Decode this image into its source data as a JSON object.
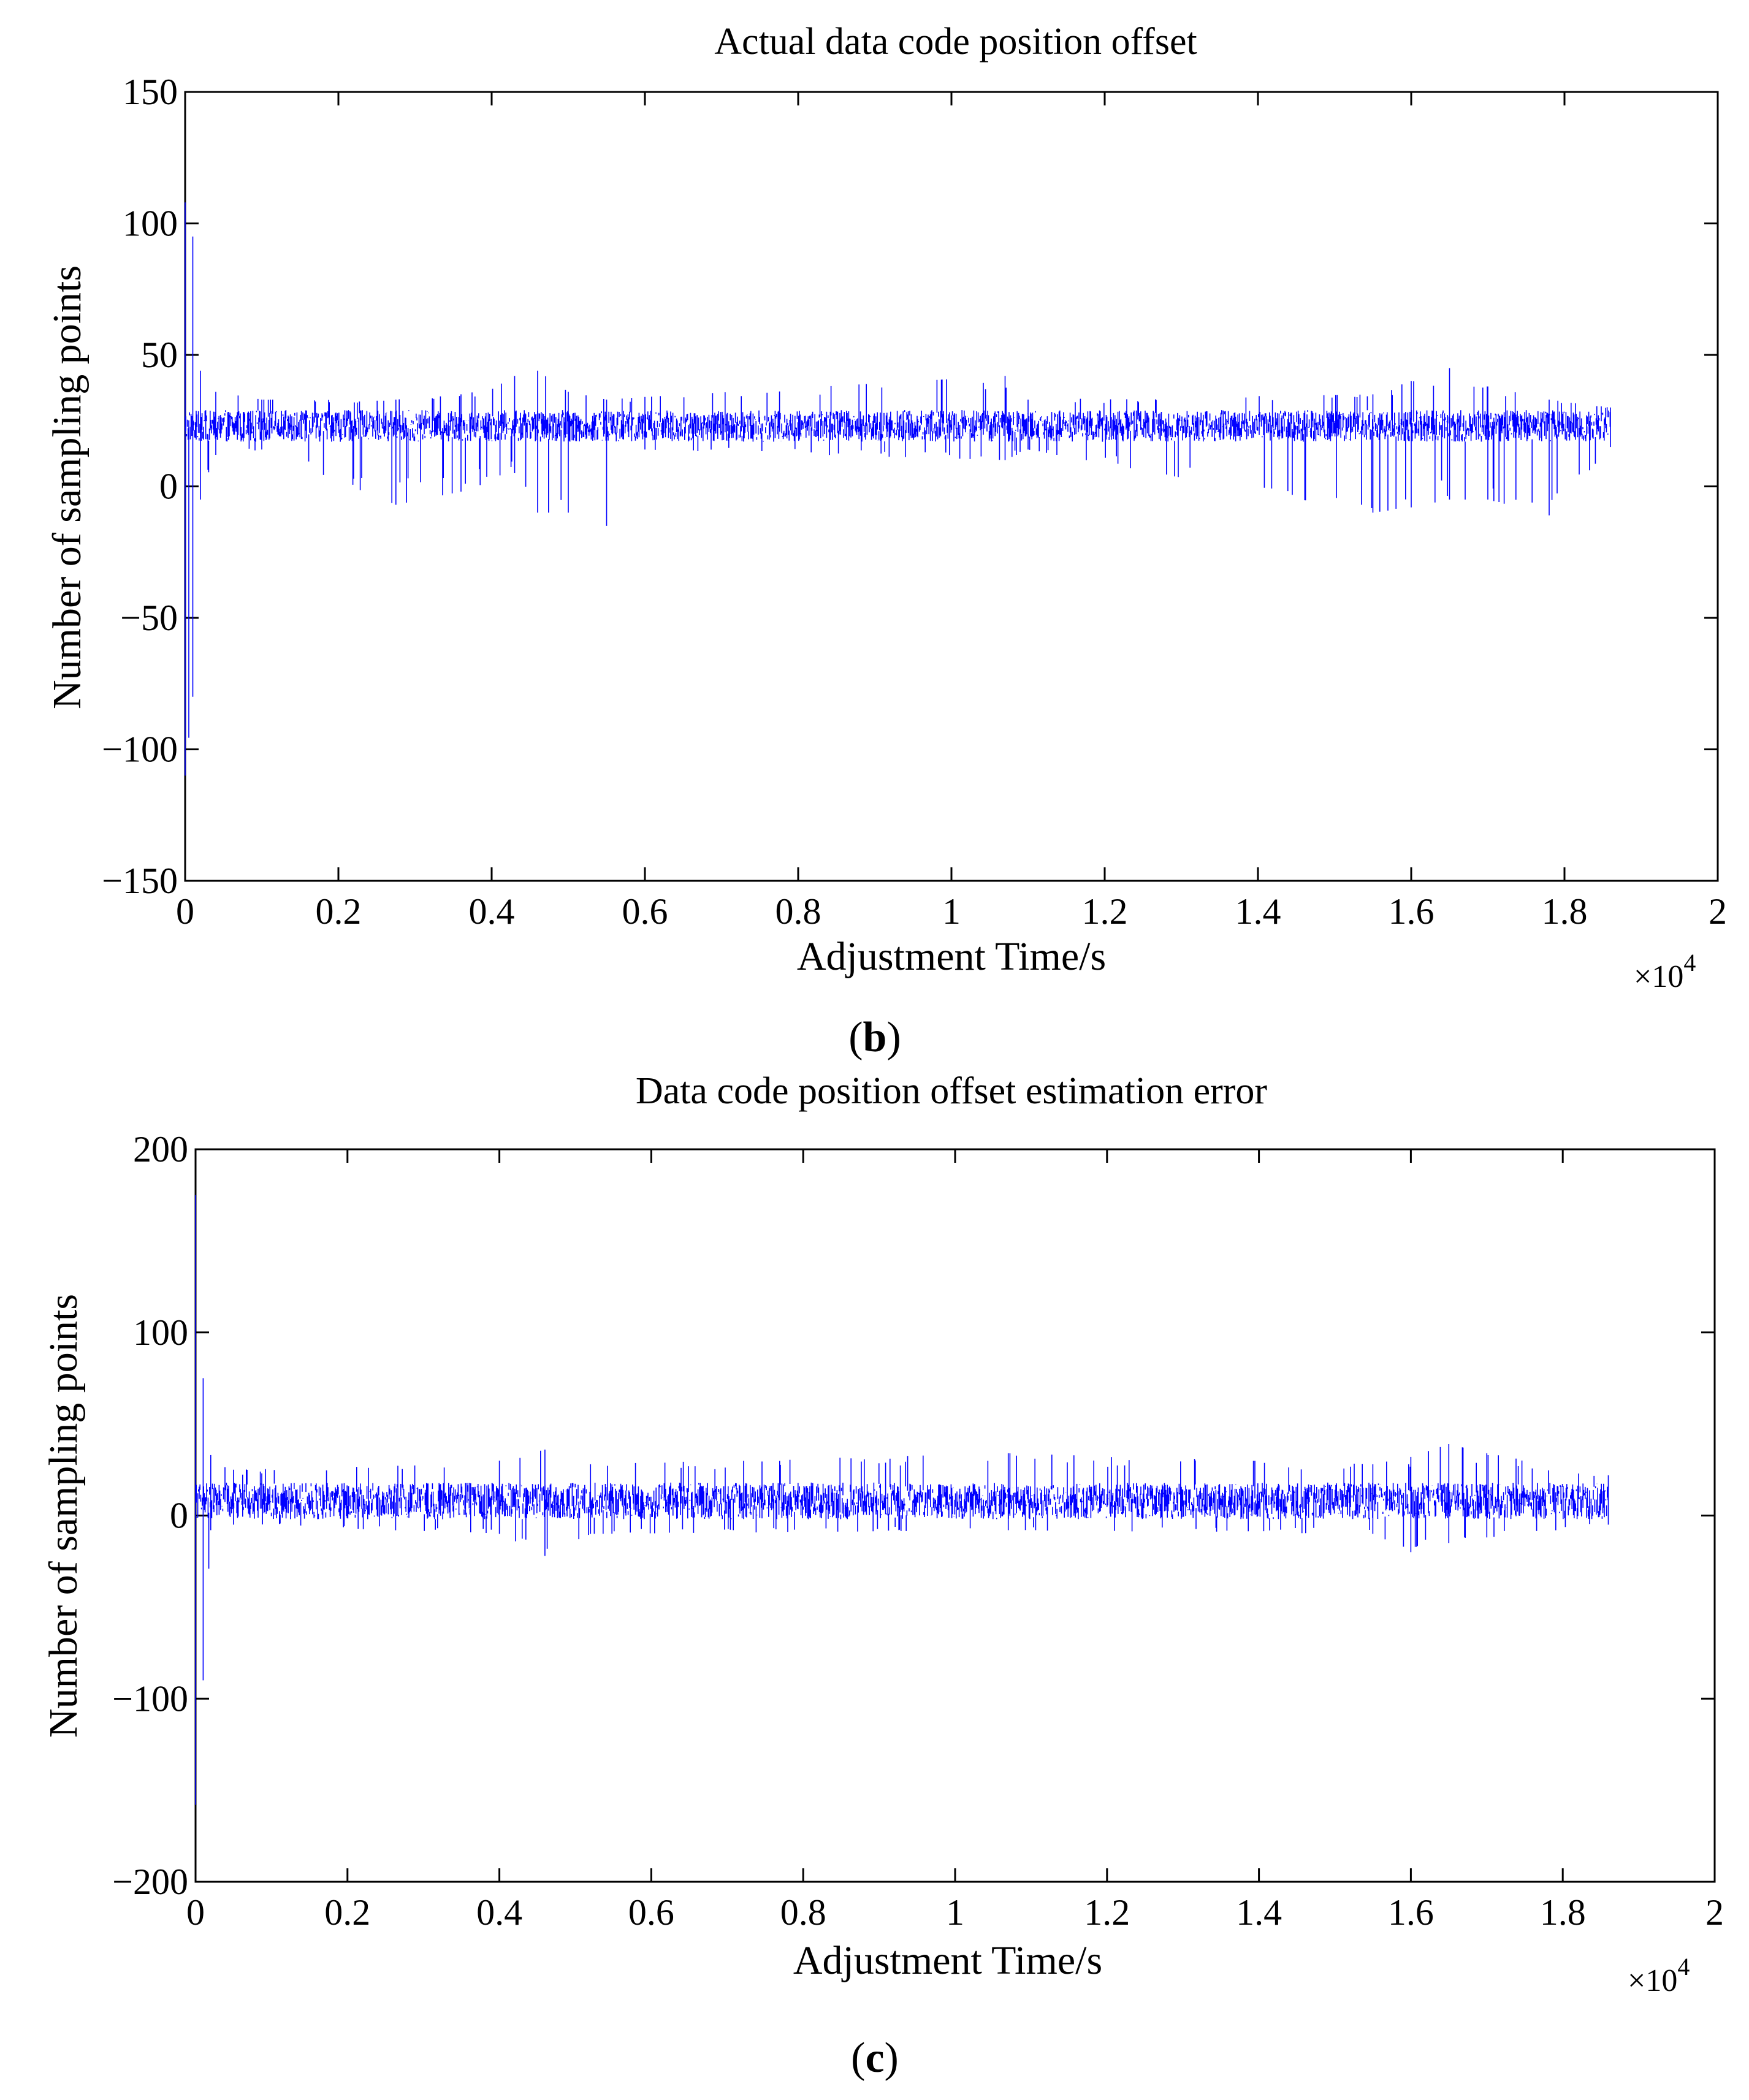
{
  "chart_data": [
    {
      "type": "line",
      "panel_label": "b",
      "title": "Actual data code position offset",
      "xlabel": "Adjustment Time/s",
      "ylabel": "Number of sampling points",
      "x_multiplier_text": "×10",
      "x_multiplier_exponent": "4",
      "xlim": [
        0,
        20000
      ],
      "ylim": [
        -150,
        150
      ],
      "xticks": [
        0,
        2000,
        4000,
        6000,
        8000,
        10000,
        12000,
        14000,
        16000,
        18000,
        20000
      ],
      "xtick_labels": [
        "0",
        "0.2",
        "0.4",
        "0.6",
        "0.8",
        "1",
        "1.2",
        "1.4",
        "1.6",
        "1.8",
        "2"
      ],
      "yticks": [
        150,
        100,
        50,
        0,
        -50,
        -100,
        -150
      ],
      "ytick_labels": [
        "150",
        "100",
        "50",
        "0",
        "−50",
        "−100",
        "−150"
      ],
      "grid": false,
      "series_color": "#0000ff",
      "series": [
        {
          "x_range": [
            0,
            18600
          ],
          "baseline": 23,
          "noise_band": 6,
          "envelope": [
            {
              "x": 0,
              "min": -110,
              "max": 108
            },
            {
              "x": 100,
              "min": -80,
              "max": 95
            },
            {
              "x": 200,
              "min": -5,
              "max": 44
            },
            {
              "x": 400,
              "min": 12,
              "max": 36
            },
            {
              "x": 1000,
              "min": 14,
              "max": 33
            },
            {
              "x": 2750,
              "min": -7,
              "max": 33
            },
            {
              "x": 3600,
              "min": -2,
              "max": 35
            },
            {
              "x": 4300,
              "min": 5,
              "max": 42
            },
            {
              "x": 4600,
              "min": -10,
              "max": 44
            },
            {
              "x": 5000,
              "min": -10,
              "max": 36
            },
            {
              "x": 5500,
              "min": -15,
              "max": 33
            },
            {
              "x": 6000,
              "min": 14,
              "max": 34
            },
            {
              "x": 10700,
              "min": 10,
              "max": 42
            },
            {
              "x": 11000,
              "min": 14,
              "max": 33
            },
            {
              "x": 15500,
              "min": -10,
              "max": 35
            },
            {
              "x": 16000,
              "min": -8,
              "max": 40
            },
            {
              "x": 16500,
              "min": -5,
              "max": 45
            },
            {
              "x": 17000,
              "min": -5,
              "max": 38
            },
            {
              "x": 17800,
              "min": -11,
              "max": 33
            },
            {
              "x": 18600,
              "min": 15,
              "max": 30
            }
          ]
        }
      ]
    },
    {
      "type": "line",
      "panel_label": "c",
      "title": "Data code position offset estimation error",
      "xlabel": "Adjustment Time/s",
      "ylabel": "Number of sampling points",
      "x_multiplier_text": "×10",
      "x_multiplier_exponent": "4",
      "xlim": [
        0,
        20000
      ],
      "ylim": [
        -200,
        200
      ],
      "xticks": [
        0,
        2000,
        4000,
        6000,
        8000,
        10000,
        12000,
        14000,
        16000,
        18000,
        20000
      ],
      "xtick_labels": [
        "0",
        "0.2",
        "0.4",
        "0.6",
        "0.8",
        "1",
        "1.2",
        "1.4",
        "1.6",
        "1.8",
        "2"
      ],
      "yticks": [
        200,
        100,
        0,
        -100,
        -200
      ],
      "ytick_labels": [
        "200",
        "100",
        "0",
        "−100",
        "−200"
      ],
      "grid": false,
      "series_color": "#0000ff",
      "series": [
        {
          "x_range": [
            0,
            18600
          ],
          "baseline": 8,
          "noise_band": 10,
          "envelope": [
            {
              "x": 0,
              "min": -158,
              "max": 175
            },
            {
              "x": 100,
              "min": -90,
              "max": 75
            },
            {
              "x": 200,
              "min": -8,
              "max": 33
            },
            {
              "x": 500,
              "min": -5,
              "max": 25
            },
            {
              "x": 4000,
              "min": -10,
              "max": 30
            },
            {
              "x": 4600,
              "min": -22,
              "max": 36
            },
            {
              "x": 5200,
              "min": -10,
              "max": 28
            },
            {
              "x": 10700,
              "min": -8,
              "max": 34
            },
            {
              "x": 15500,
              "min": -10,
              "max": 28
            },
            {
              "x": 16000,
              "min": -20,
              "max": 32
            },
            {
              "x": 16500,
              "min": -15,
              "max": 39
            },
            {
              "x": 17000,
              "min": -12,
              "max": 34
            },
            {
              "x": 18600,
              "min": -5,
              "max": 22
            }
          ]
        }
      ]
    }
  ]
}
